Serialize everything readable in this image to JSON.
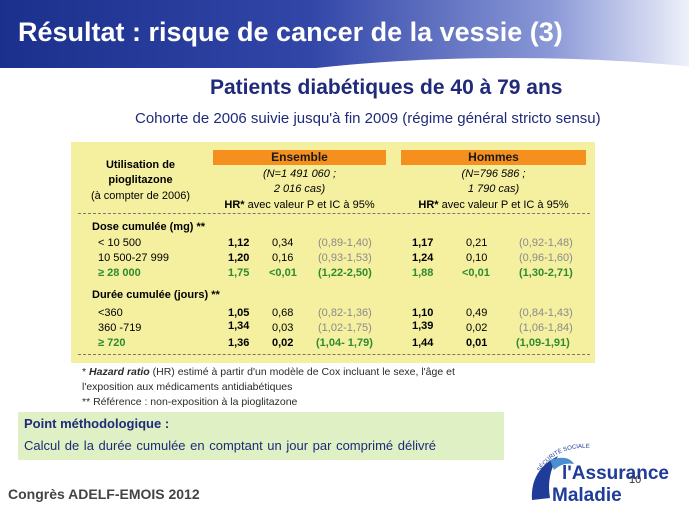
{
  "title": "Résultat : risque de cancer de la vessie (3)",
  "subtitle": "Patients diabétiques de 40 à 79 ans",
  "cohort": "Cohorte de 2006 suivie jusqu'à fin 2009 (régime général stricto sensu)",
  "table": {
    "header_usage": [
      "Utilisation de",
      "pioglitazone",
      "(à compter de 2006)"
    ],
    "groups": [
      {
        "name": "Ensemble",
        "n_line1": "(N=1 491 060 ;",
        "n_line2": "2 016 cas)",
        "hr_bold": "HR*",
        "hr_rest": " avec valeur P et IC à 95%"
      },
      {
        "name": "Hommes",
        "n_line1": "(N=796 586 ;",
        "n_line2": "1 790 cas)",
        "hr_bold": "HR*",
        "hr_rest": " avec valeur P et IC à 95%"
      }
    ],
    "dose_title": "Dose cumulée (mg) **",
    "duration_title": "Durée cumulée (jours) **",
    "dose_rows": [
      {
        "label": "< 10 500",
        "e_hr": "1,12",
        "e_p": "0,34",
        "e_ci": "(0,89-1,40)",
        "h_hr": "1,17",
        "h_p": "0,21",
        "h_ci": "(0,92-1,48)"
      },
      {
        "label": "10 500-27 999",
        "e_hr": "1,20",
        "e_p": "0,16",
        "e_ci": "(0,93-1,53)",
        "h_hr": "1,24",
        "h_p": "0,10",
        "h_ci": "(0,96-1,60)"
      },
      {
        "label": "≥ 28 000",
        "e_hr": "1,75",
        "e_p": "<0,01",
        "e_ci": "(1,22-2,50)",
        "h_hr": "1,88",
        "h_p": "<0,01",
        "h_ci": "(1,30-2,71)"
      }
    ],
    "duration_rows": [
      {
        "label": "<360",
        "e_hr": "1,05",
        "e_p": "0,68",
        "e_ci": "(0,82-1,36)",
        "h_hr": "1,10",
        "h_p": "0,49",
        "h_ci": "(0,84-1,43)"
      },
      {
        "label": "360 -719",
        "e_hr": "1,34",
        "e_p": "0,03",
        "e_ci": "(1,02-1,75)",
        "h_hr": "1,39",
        "h_p": "0,02",
        "h_ci": "(1,06-1,84)"
      },
      {
        "label": "≥ 720",
        "e_hr": "1,36",
        "e_p": "0,02",
        "e_ci": "(1,04- 1,79)",
        "h_hr": "1,44",
        "h_p": "0,01",
        "h_ci": "(1,09-1,91)"
      }
    ]
  },
  "footnote1_a": "* ",
  "footnote1_b": "Hazard ratio",
  "footnote1_c": " (HR) estimé à partir d'un modèle de Cox incluant le sexe, l'âge et",
  "footnote2": "l'exposition aux médicaments antidiabétiques",
  "footnote3": "** Référence : non-exposition à la pioglitazone",
  "method_title": "Point méthodologique :",
  "method_text": "Calcul de la durée cumulée en comptant un jour par comprimé délivré",
  "congres": "Congrès ADELF-EMOIS 2012",
  "page_number": "10",
  "logo": {
    "arc_text": "SÉCURITÉ SOCIALE",
    "line1": "l'Assurance",
    "line2": "Maladie"
  },
  "colors": {
    "banner": "#1b2f8c",
    "table_bg": "#f5f0a0",
    "header_orange": "#f58f1e",
    "highlight_green": "#2e8b2e",
    "method_bg": "#dff0c4",
    "text_blue": "#1f2a7a"
  }
}
